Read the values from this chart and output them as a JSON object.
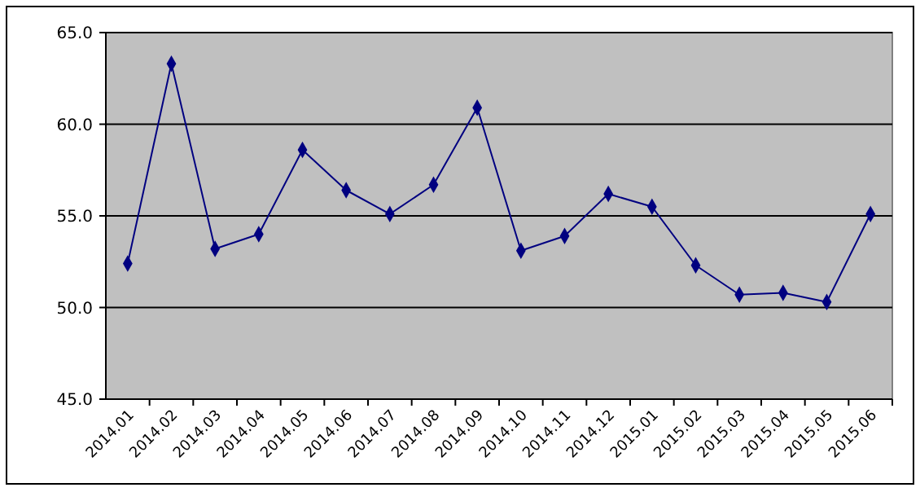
{
  "chart_data": {
    "type": "line",
    "categories": [
      "2014.01",
      "2014.02",
      "2014.03",
      "2014.04",
      "2014.05",
      "2014.06",
      "2014.07",
      "2014.08",
      "2014.09",
      "2014.10",
      "2014.11",
      "2014.12",
      "2015.01",
      "2015.02",
      "2015.03",
      "2015.04",
      "2015.05",
      "2015.06"
    ],
    "series": [
      {
        "color": "#000080",
        "values": [
          52.4,
          63.3,
          53.2,
          54.0,
          58.6,
          56.4,
          55.1,
          56.7,
          60.9,
          53.1,
          53.9,
          56.2,
          55.5,
          52.3,
          50.7,
          50.8,
          50.3,
          55.1
        ]
      }
    ],
    "ylim": [
      45,
      65
    ],
    "yticks": [
      {
        "value": 45,
        "label": "45.0"
      },
      {
        "value": 50,
        "label": "50.0"
      },
      {
        "value": 55,
        "label": "55.0"
      },
      {
        "value": 60,
        "label": "60.0"
      },
      {
        "value": 65,
        "label": "65.0"
      }
    ],
    "grid": "y",
    "marker": "diamond",
    "line_style": "solid"
  }
}
